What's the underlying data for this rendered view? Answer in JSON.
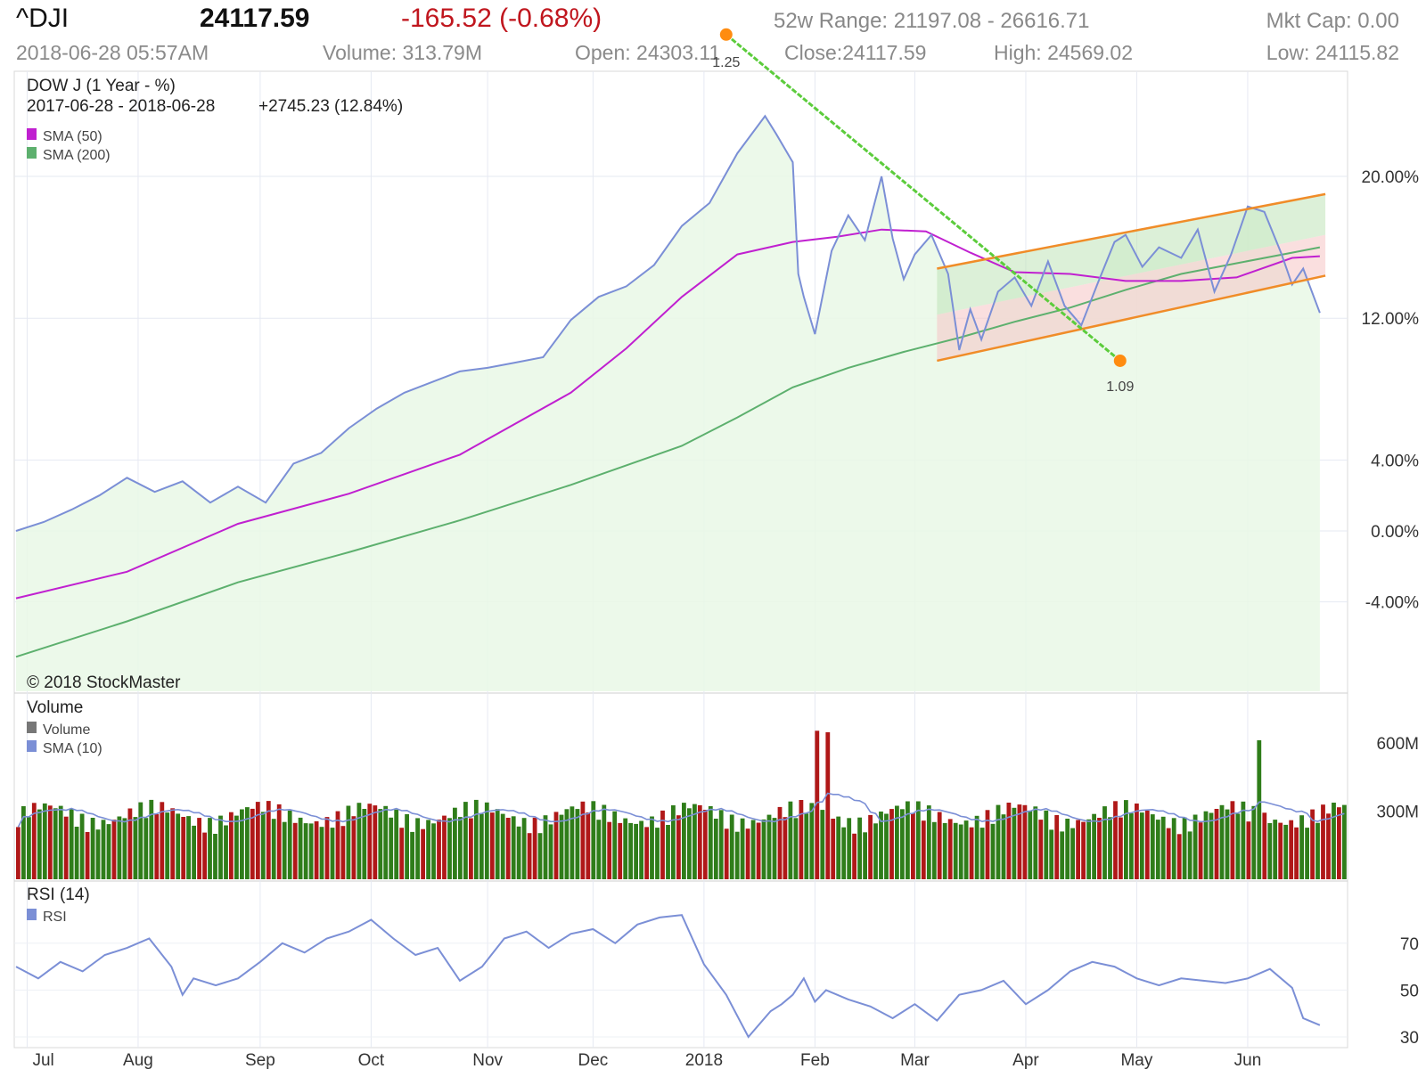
{
  "header": {
    "symbol": "^DJI",
    "price": "24117.59",
    "change": "-165.52 (-0.68%)",
    "range": "52w Range: 21197.08 - 26616.71",
    "mktcap": "Mkt Cap: 0.00",
    "timestamp": "2018-06-28 05:57AM",
    "volume": "Volume: 313.79M",
    "open": "Open: 24303.11",
    "close": "Close:24117.59",
    "high": "High: 24569.02",
    "low": "Low: 24115.82"
  },
  "colors": {
    "price_line": "#7b8fd6",
    "sma50": "#c020d0",
    "sma200": "#5db06e",
    "up": "#2f7d1a",
    "down": "#b01818",
    "channel": "#f08c28",
    "trend": "#5ccc3c",
    "marker": "#ff8c10"
  },
  "chart_data": [
    {
      "type": "line",
      "title": "DOW J (1 Year - %)",
      "subtitle": "2017-06-28 - 2018-06-28",
      "performance": "+2745.23 (12.84%)",
      "watermark": "© 2018 StockMaster",
      "y_ticks": [
        "20.00%",
        "12.00%",
        "4.00%",
        "0.00%",
        "-4.00%"
      ],
      "y_tick_values": [
        20,
        12,
        4,
        0,
        -4
      ],
      "ylim": [
        -8,
        28.5
      ],
      "x_ticks": [
        "Jul",
        "Aug",
        "Sep",
        "Oct",
        "Nov",
        "Dec",
        "2018",
        "Feb",
        "Mar",
        "Apr",
        "May",
        "Jun"
      ],
      "x_tick_months": [
        0.1,
        1.1,
        2.2,
        3.2,
        4.25,
        5.2,
        6.2,
        7.2,
        8.1,
        9.1,
        10.1,
        11.1
      ],
      "series": [
        {
          "name": "DOW J",
          "x_months": [
            0,
            0.25,
            0.5,
            0.75,
            1.0,
            1.25,
            1.5,
            1.75,
            2.0,
            2.25,
            2.5,
            2.75,
            3.0,
            3.25,
            3.5,
            3.75,
            4.0,
            4.25,
            4.5,
            4.75,
            5.0,
            5.25,
            5.5,
            5.75,
            6.0,
            6.25,
            6.5,
            6.75,
            6.85,
            7.0,
            7.05,
            7.1,
            7.2,
            7.35,
            7.5,
            7.65,
            7.8,
            7.9,
            8.0,
            8.1,
            8.25,
            8.4,
            8.5,
            8.6,
            8.7,
            8.85,
            9.0,
            9.15,
            9.3,
            9.45,
            9.6,
            9.75,
            9.9,
            10.0,
            10.15,
            10.3,
            10.5,
            10.65,
            10.8,
            10.95,
            11.1,
            11.25,
            11.4,
            11.5,
            11.6,
            11.75
          ],
          "values": [
            0,
            0.5,
            1.2,
            2.0,
            3.0,
            2.2,
            2.8,
            1.6,
            2.5,
            1.6,
            3.8,
            4.4,
            5.8,
            6.9,
            7.8,
            8.4,
            9.0,
            9.2,
            9.5,
            9.8,
            11.9,
            13.2,
            13.8,
            15.0,
            17.2,
            18.5,
            21.3,
            23.4,
            22.4,
            20.8,
            14.5,
            13.2,
            11.1,
            15.8,
            17.8,
            16.4,
            20.0,
            16.5,
            14.2,
            15.6,
            16.7,
            14.5,
            10.2,
            12.5,
            10.8,
            13.5,
            14.3,
            12.7,
            15.2,
            12.7,
            11.6,
            14.0,
            16.3,
            16.7,
            14.9,
            16.0,
            15.4,
            17.0,
            13.5,
            15.6,
            18.3,
            18.0,
            15.7,
            13.9,
            14.8,
            12.3
          ]
        },
        {
          "name": "SMA (50)",
          "x_months": [
            0,
            1,
            2,
            3,
            4,
            5,
            5.5,
            6,
            6.5,
            7,
            7.4,
            7.8,
            8.2,
            8.6,
            9.0,
            9.5,
            10.0,
            10.5,
            11.0,
            11.5,
            11.75
          ],
          "values": [
            -3.8,
            -2.3,
            0.4,
            2.1,
            4.3,
            7.8,
            10.3,
            13.2,
            15.6,
            16.3,
            16.6,
            17.0,
            16.9,
            15.7,
            14.6,
            14.5,
            14.1,
            14.1,
            14.3,
            15.4,
            15.5
          ]
        },
        {
          "name": "SMA (200)",
          "x_months": [
            0,
            1,
            2,
            3,
            4,
            5,
            6,
            6.5,
            7,
            7.5,
            8,
            8.5,
            9,
            9.5,
            10,
            10.5,
            11,
            11.5,
            11.75
          ],
          "values": [
            -7.1,
            -5.1,
            -2.9,
            -1.2,
            0.6,
            2.6,
            4.8,
            6.4,
            8.1,
            9.2,
            10.1,
            10.9,
            11.8,
            12.6,
            13.6,
            14.5,
            15.1,
            15.7,
            16.0
          ]
        }
      ],
      "trendline": {
        "labels": [
          "1.25",
          "1.09"
        ],
        "from": [
          6.4,
          28.0
        ],
        "to": [
          9.95,
          9.6
        ]
      },
      "channel": {
        "x_range": [
          8.3,
          11.8
        ],
        "upper": [
          14.8,
          19.0
        ],
        "lower": [
          9.6,
          14.4
        ]
      }
    },
    {
      "type": "bar",
      "title": "Volume",
      "legend": [
        "Volume",
        "SMA (10)"
      ],
      "y_ticks": [
        "600M",
        "300M"
      ],
      "y_tick_values": [
        600,
        300
      ],
      "ylim": [
        0,
        820
      ],
      "unit": "M",
      "n_bars": 250,
      "down_days": [
        0,
        3,
        6,
        9,
        13,
        18,
        21,
        26,
        27,
        29,
        31,
        34,
        35,
        40,
        44,
        45,
        47,
        49,
        52,
        56,
        58,
        60,
        61,
        63,
        66,
        67,
        72,
        76,
        79,
        80,
        85,
        89,
        92,
        96,
        97,
        101,
        106,
        107,
        111,
        113,
        118,
        121,
        124,
        128,
        129,
        133,
        137,
        139,
        143,
        144,
        147,
        150,
        152,
        153,
        157,
        160,
        164,
        168,
        170,
        173,
        175,
        179,
        182,
        186,
        188,
        189,
        192,
        195,
        199,
        200,
        203,
        206,
        207,
        210,
        212,
        216,
        218,
        222,
        225,
        228,
        231,
        234,
        237,
        239,
        240,
        243,
        245,
        246,
        248
      ]
    },
    {
      "type": "line",
      "title": "RSI (14)",
      "legend": [
        "RSI"
      ],
      "y_ticks": [
        "70",
        "50",
        "30"
      ],
      "y_tick_values": [
        70,
        50,
        30
      ],
      "ylim": [
        27,
        85
      ],
      "series": [
        {
          "name": "RSI",
          "x_months": [
            0,
            0.2,
            0.4,
            0.6,
            0.8,
            1.0,
            1.2,
            1.4,
            1.5,
            1.6,
            1.8,
            2.0,
            2.2,
            2.4,
            2.6,
            2.8,
            3.0,
            3.2,
            3.4,
            3.6,
            3.8,
            4.0,
            4.2,
            4.4,
            4.6,
            4.8,
            5.0,
            5.2,
            5.4,
            5.6,
            5.8,
            6.0,
            6.2,
            6.4,
            6.6,
            6.8,
            6.9,
            7.0,
            7.1,
            7.2,
            7.3,
            7.5,
            7.7,
            7.9,
            8.1,
            8.3,
            8.5,
            8.7,
            8.9,
            9.1,
            9.3,
            9.5,
            9.7,
            9.9,
            10.1,
            10.3,
            10.5,
            10.7,
            10.9,
            11.1,
            11.3,
            11.5,
            11.6,
            11.75
          ],
          "values": [
            60,
            55,
            62,
            58,
            65,
            68,
            72,
            60,
            48,
            55,
            52,
            55,
            62,
            70,
            66,
            72,
            75,
            80,
            72,
            65,
            68,
            54,
            60,
            72,
            75,
            68,
            74,
            76,
            70,
            78,
            81,
            82,
            61,
            48,
            30,
            41,
            44,
            48,
            55,
            45,
            50,
            46,
            43,
            38,
            44,
            37,
            48,
            50,
            54,
            44,
            50,
            58,
            62,
            60,
            55,
            52,
            55,
            54,
            53,
            55,
            59,
            51,
            38,
            35
          ]
        }
      ]
    }
  ]
}
